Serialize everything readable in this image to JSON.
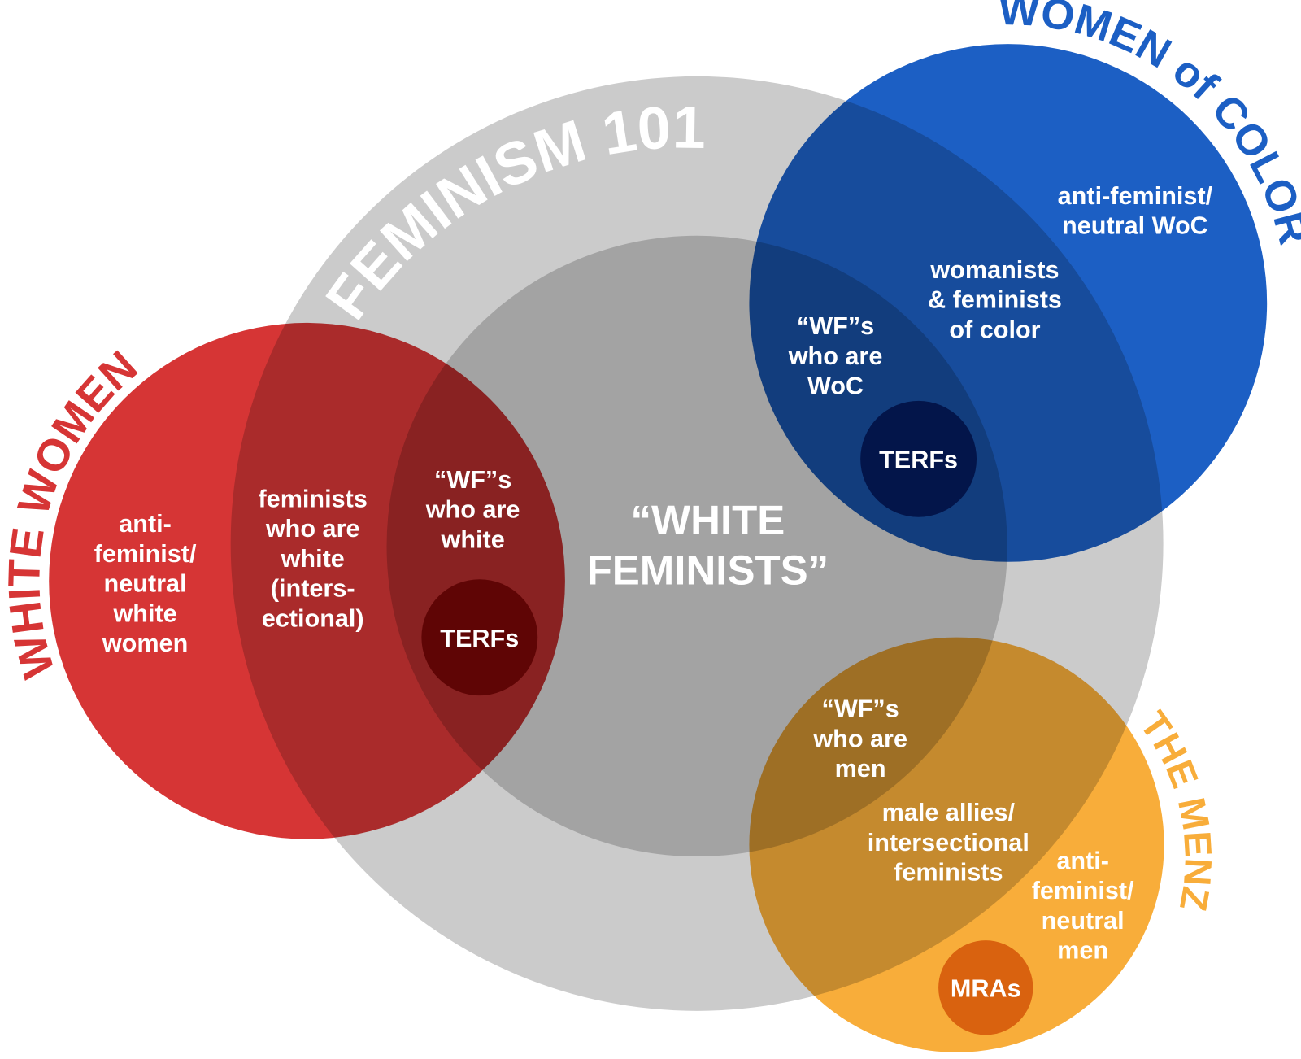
{
  "diagram": {
    "sets": [
      {
        "key": "feminism101",
        "label": "FEMINISM 101",
        "color": "#cbcbcb",
        "text_color": "#ffffff"
      },
      {
        "key": "whitefem",
        "label": "",
        "color": "#a3a3a3"
      },
      {
        "key": "white_women",
        "label": "WHITE WOMEN",
        "color": "#d63535",
        "text_color": "#d63535"
      },
      {
        "key": "woc",
        "label": "WOMEN of COLOR",
        "color": "#1c5fc4",
        "text_color": "#1c5fc4"
      },
      {
        "key": "menz",
        "label": "THE MENZ",
        "color": "#f8ad3a",
        "text_color": "#f8ad3a"
      }
    ],
    "subsets": [
      {
        "key": "terfs_white",
        "label": "TERFs",
        "color": "#5f0505"
      },
      {
        "key": "terfs_woc",
        "label": "TERFs",
        "color": "#03154a"
      },
      {
        "key": "mras",
        "label": "MRAs",
        "color": "#d9620f"
      }
    ],
    "regions": [
      {
        "key": "antifem_white",
        "lines": [
          "anti-",
          "feminist/",
          "neutral",
          "white",
          "women"
        ]
      },
      {
        "key": "fem_white",
        "lines": [
          "feminists",
          "who are",
          "white",
          "(inters-",
          "ectional)"
        ]
      },
      {
        "key": "wf_white",
        "lines": [
          "“WF”s",
          "who are",
          "white"
        ]
      },
      {
        "key": "white_feminists",
        "lines": [
          "“WHITE",
          "FEMINISTS”"
        ]
      },
      {
        "key": "antifem_woc",
        "lines": [
          "anti-feminist/",
          "neutral WoC"
        ]
      },
      {
        "key": "womanists",
        "lines": [
          "womanists",
          "& feminists",
          "of color"
        ]
      },
      {
        "key": "wf_woc",
        "lines": [
          "“WF”s",
          "who are",
          "WoC"
        ]
      },
      {
        "key": "wf_men",
        "lines": [
          "“WF”s",
          "who are",
          "men"
        ]
      },
      {
        "key": "male_allies",
        "lines": [
          "male allies/",
          "intersectional",
          "feminists"
        ]
      },
      {
        "key": "antifem_men",
        "lines": [
          "anti-",
          "feminist/",
          "neutral",
          "men"
        ]
      }
    ]
  }
}
